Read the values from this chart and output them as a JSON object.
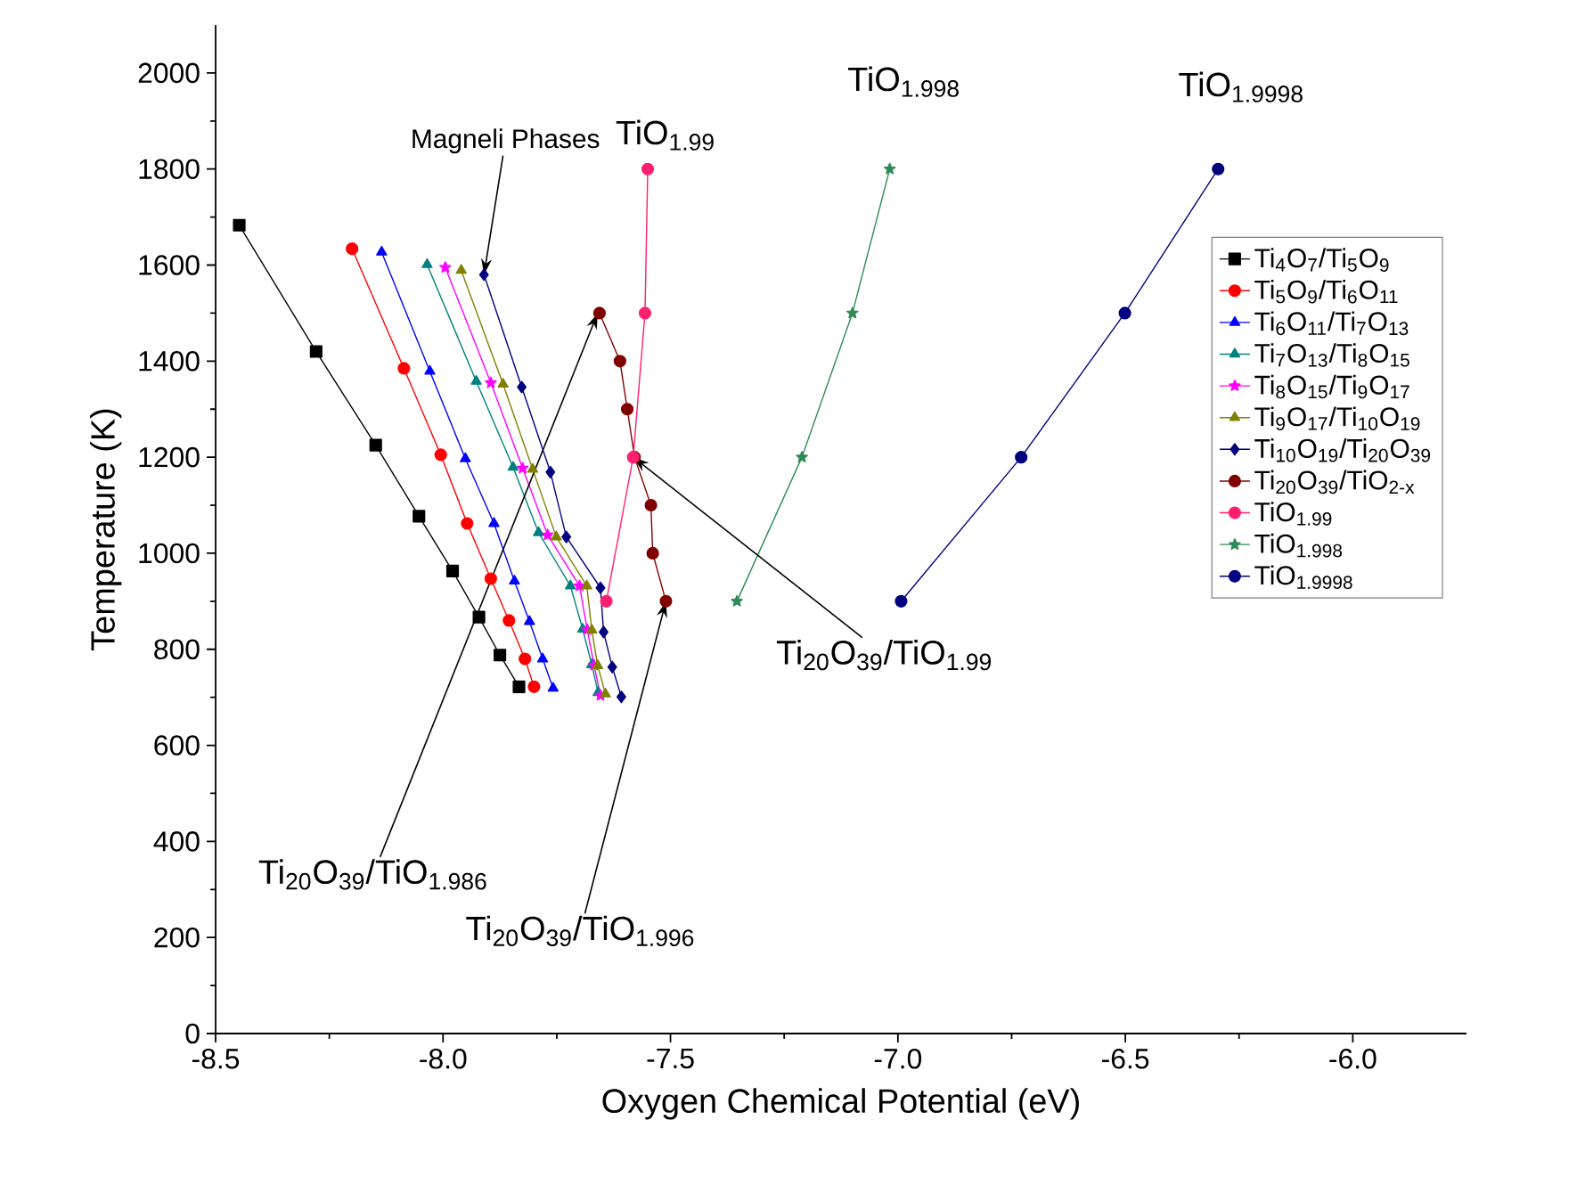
{
  "chart_data": {
    "type": "line",
    "xlabel": "Oxygen Chemical Potential (eV)",
    "ylabel": "Temperature (K)",
    "xlim": [
      -8.5,
      -5.75
    ],
    "ylim": [
      0,
      2100
    ],
    "xticks": [
      {
        "value": -8.5,
        "label": "-8.5"
      },
      {
        "value": -8.0,
        "label": "-8.0"
      },
      {
        "value": -7.5,
        "label": "-7.5"
      },
      {
        "value": -7.0,
        "label": "-7.0"
      },
      {
        "value": -6.5,
        "label": "-6.5"
      },
      {
        "value": -6.0,
        "label": "-6.0"
      }
    ],
    "yticks": [
      0,
      200,
      400,
      600,
      800,
      1000,
      1200,
      1400,
      1600,
      1800,
      2000
    ],
    "legend": "right",
    "series": [
      {
        "name": "Ti$_{4}$O$_{7}$/Ti$_{5}$O$_{9}$",
        "color": "#000000",
        "marker": "square",
        "x": [
          -8.448,
          -8.279,
          -8.148,
          -8.053,
          -7.979,
          -7.921,
          -7.875,
          -7.833
        ],
        "values": [
          1683,
          1420,
          1225,
          1077,
          963,
          867,
          788,
          722
        ]
      },
      {
        "name": "Ti$_{5}$O$_{9}$/Ti$_{6}$O$_{11}$",
        "color": "#ff0000",
        "marker": "circle",
        "x": [
          -8.2,
          -8.086,
          -8.005,
          -7.947,
          -7.895,
          -7.855,
          -7.82,
          -7.8
        ],
        "values": [
          1634,
          1385,
          1205,
          1062,
          947,
          860,
          780,
          722
        ]
      },
      {
        "name": "Ti$_{6}$O$_{11}$/Ti$_{7}$O$_{13}$",
        "color": "#0000ff",
        "marker": "triangle",
        "x": [
          -8.135,
          -8.029,
          -7.951,
          -7.888,
          -7.843,
          -7.81,
          -7.781,
          -7.758
        ],
        "values": [
          1627,
          1379,
          1197,
          1062,
          942,
          858,
          780,
          719
        ]
      },
      {
        "name": "Ti$_{7}$O$_{13}$/Ti$_{8}$O$_{15}$",
        "color": "#008080",
        "marker": "triangle",
        "x": [
          -8.035,
          -7.927,
          -7.846,
          -7.79,
          -7.72,
          -7.693,
          -7.673,
          -7.659
        ],
        "values": [
          1601,
          1358,
          1179,
          1043,
          932,
          842,
          768,
          710
        ]
      },
      {
        "name": "Ti$_{8}$O$_{15}$/Ti$_{9}$O$_{17}$",
        "color": "#ff00ff",
        "marker": "star",
        "x": [
          -7.995,
          -7.895,
          -7.825,
          -7.77,
          -7.7,
          -7.683,
          -7.668,
          -7.654
        ],
        "values": [
          1595,
          1355,
          1177,
          1038,
          932,
          841,
          767,
          704
        ]
      },
      {
        "name": "Ti$_{9}$O$_{17}$/Ti$_{10}$O$_{19}$",
        "color": "#808000",
        "marker": "triangle",
        "x": [
          -7.96,
          -7.868,
          -7.803,
          -7.751,
          -7.684,
          -7.673,
          -7.66,
          -7.643
        ],
        "values": [
          1589,
          1352,
          1175,
          1034,
          932,
          840,
          766,
          707
        ]
      },
      {
        "name": "Ti$_{10}$O$_{19}$/Ti$_{20}$O$_{39}$",
        "color": "#000080",
        "marker": "diamond",
        "x": [
          -7.91,
          -7.827,
          -7.764,
          -7.729,
          -7.654,
          -7.647,
          -7.628,
          -7.608
        ],
        "values": [
          1580,
          1346,
          1169,
          1034,
          928,
          836,
          763,
          701
        ]
      },
      {
        "name": "Ti$_{20}$O$_{39}$/TiO$_{2-x}$",
        "color": "#800000",
        "marker": "circle",
        "x": [
          -7.656,
          -7.611,
          -7.595,
          -7.579,
          -7.543,
          -7.539,
          -7.51
        ],
        "values": [
          1500,
          1400,
          1300,
          1200,
          1100,
          1000,
          900
        ]
      },
      {
        "name": "TiO$_{1.99}$",
        "color": "#ff1f70",
        "marker": "circle",
        "x": [
          -7.55,
          -7.556,
          -7.582,
          -7.641
        ],
        "values": [
          1800,
          1500,
          1200,
          900
        ]
      },
      {
        "name": "TiO$_{1.998}$",
        "color": "#2e8b57",
        "marker": "star",
        "x": [
          -7.018,
          -7.1,
          -7.211,
          -7.354
        ],
        "values": [
          1800,
          1500,
          1200,
          900
        ]
      },
      {
        "name": "TiO$_{1.9998}$",
        "color": "#000080",
        "marker": "circle",
        "x": [
          -6.296,
          -6.501,
          -6.729,
          -6.993
        ],
        "values": [
          1800,
          1500,
          1200,
          900
        ]
      }
    ],
    "annotations": [
      {
        "text": "Magneli Phases",
        "x": -7.91,
        "y": 1580
      },
      {
        "text": "Ti$_{20}$O$_{39}$/TiO$_{1.986}$",
        "x": -7.66,
        "y": 1500
      },
      {
        "text": "Ti$_{20}$O$_{39}$/TiO$_{1.996}$",
        "x": -7.51,
        "y": 900
      },
      {
        "text": "Ti$_{20}$O$_{39}$/TiO$_{1.99}$",
        "x": -7.582,
        "y": 1200
      },
      {
        "text": "TiO$_{1.99}$",
        "x": -7.55,
        "y": 1800
      },
      {
        "text": "TiO$_{1.998}$",
        "x": -7.018,
        "y": 1800
      },
      {
        "text": "TiO$_{1.9998}$",
        "x": -6.296,
        "y": 1800
      }
    ]
  }
}
